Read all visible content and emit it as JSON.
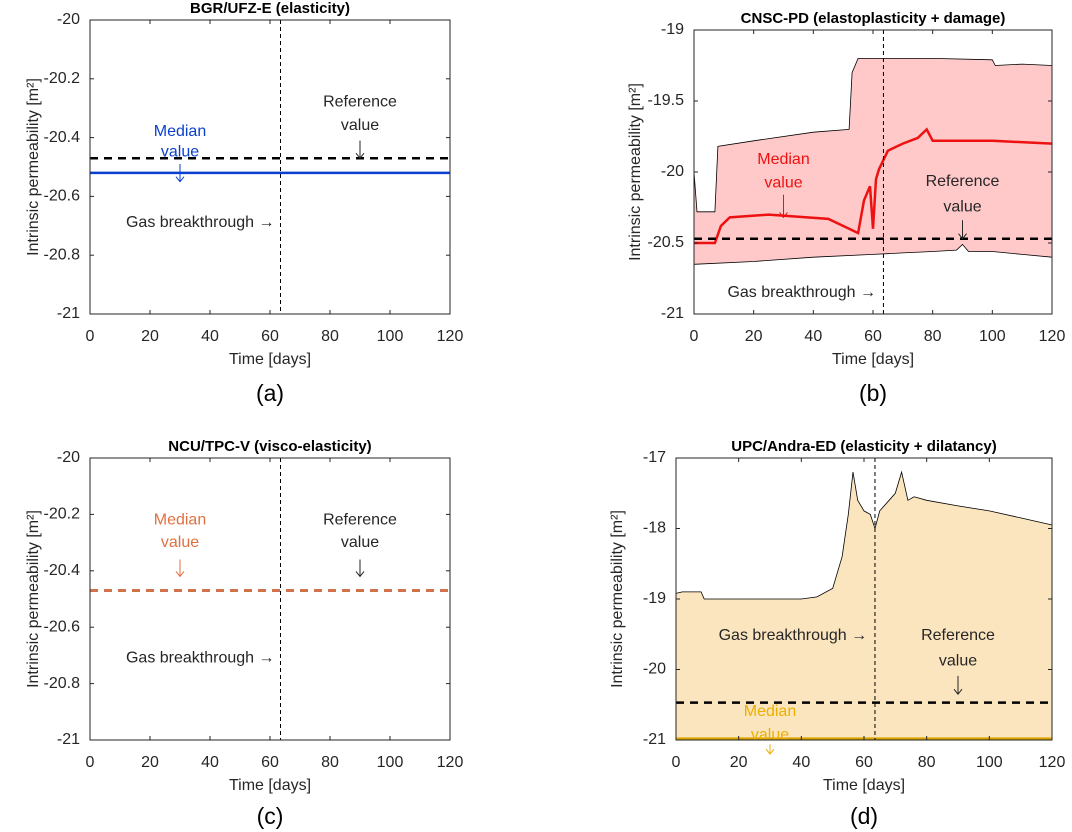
{
  "chart_data": [
    {
      "type": "line",
      "title": "BGR/UFZ-E (elasticity)",
      "panel_label": "(a)",
      "xlabel": "Time [days]",
      "ylabel": "Intrinsic permeability [m²]",
      "xlim": [
        0,
        120
      ],
      "ylim": [
        -21,
        -20
      ],
      "xticks": [
        0,
        20,
        40,
        60,
        80,
        100,
        120
      ],
      "yticks": [
        -21,
        -20.8,
        -20.6,
        -20.4,
        -20.2,
        -20
      ],
      "breakthrough_x": 63.5,
      "series": [
        {
          "x": [
            0,
            120
          ],
          "values": [
            -20.52,
            -20.52
          ],
          "color": "#0a3fd0",
          "dashed": false
        },
        {
          "x": [
            0,
            120
          ],
          "values": [
            -20.47,
            -20.47
          ],
          "color": "#000000",
          "dashed": true
        }
      ],
      "annotations": [
        {
          "text": [
            "Median",
            "value"
          ],
          "color": "#0a3fd0"
        },
        {
          "text": [
            "Reference",
            "value"
          ],
          "color": "#262626"
        },
        {
          "text": [
            "Gas breakthrough →"
          ],
          "color": "#262626"
        }
      ]
    },
    {
      "type": "line",
      "title": "CNSC-PD (elastoplasticity + damage)",
      "panel_label": "(b)",
      "xlabel": "Time [days]",
      "ylabel": "Intrinsic permeability [m²]",
      "xlim": [
        0,
        120
      ],
      "ylim": [
        -21,
        -19
      ],
      "xticks": [
        0,
        20,
        40,
        60,
        80,
        100,
        120
      ],
      "yticks": [
        -21,
        -20.5,
        -20,
        -19.5,
        -19
      ],
      "breakthrough_x": 63.5,
      "band": {
        "color": "#ffc9c9",
        "upper": {
          "x": [
            0,
            1,
            2,
            7,
            8,
            20,
            40,
            52,
            53,
            55,
            60,
            80,
            100,
            101,
            110,
            120
          ],
          "values": [
            -20.0,
            -20.28,
            -20.28,
            -20.28,
            -19.82,
            -19.78,
            -19.72,
            -19.7,
            -19.3,
            -19.2,
            -19.2,
            -19.2,
            -19.21,
            -19.25,
            -19.24,
            -19.25
          ]
        },
        "lower": {
          "x": [
            0,
            20,
            40,
            60,
            70,
            80,
            88,
            90,
            92,
            100,
            110,
            120
          ],
          "values": [
            -20.65,
            -20.63,
            -20.6,
            -20.58,
            -20.57,
            -20.56,
            -20.55,
            -20.51,
            -20.56,
            -20.56,
            -20.58,
            -20.6
          ]
        }
      },
      "series": [
        {
          "x": [
            0,
            7,
            9,
            12,
            25,
            45,
            52,
            55,
            57,
            59,
            60,
            61,
            62,
            65,
            70,
            75,
            78,
            80,
            90,
            100,
            120
          ],
          "values": [
            -20.5,
            -20.5,
            -20.38,
            -20.32,
            -20.3,
            -20.33,
            -20.4,
            -20.43,
            -20.2,
            -20.1,
            -20.4,
            -20.05,
            -19.98,
            -19.85,
            -19.8,
            -19.76,
            -19.7,
            -19.78,
            -19.78,
            -19.78,
            -19.8
          ],
          "color": "#ee1111",
          "dashed": false
        },
        {
          "x": [
            0,
            120
          ],
          "values": [
            -20.47,
            -20.47
          ],
          "color": "#000000",
          "dashed": true
        }
      ],
      "annotations": [
        {
          "text": [
            "Median",
            "value"
          ],
          "color": "#ee1111"
        },
        {
          "text": [
            "Reference",
            "value"
          ],
          "color": "#262626"
        },
        {
          "text": [
            "Gas breakthrough →"
          ],
          "color": "#262626"
        }
      ]
    },
    {
      "type": "line",
      "title": "NCU/TPC-V (visco-elasticity)",
      "panel_label": "(c)",
      "xlabel": "Time [days]",
      "ylabel": "Intrinsic permeability [m²]",
      "xlim": [
        0,
        120
      ],
      "ylim": [
        -21,
        -20
      ],
      "xticks": [
        0,
        20,
        40,
        60,
        80,
        100,
        120
      ],
      "yticks": [
        -21,
        -20.8,
        -20.6,
        -20.4,
        -20.2,
        -20
      ],
      "breakthrough_x": 63.5,
      "series": [
        {
          "x": [
            0,
            120
          ],
          "values": [
            -20.47,
            -20.47
          ],
          "color": "#000000",
          "dashed": true
        },
        {
          "x": [
            0,
            120
          ],
          "values": [
            -20.47,
            -20.47
          ],
          "color": "#e07040",
          "dashed": true
        }
      ],
      "annotations": [
        {
          "text": [
            "Median",
            "value"
          ],
          "color": "#e07040"
        },
        {
          "text": [
            "Reference",
            "value"
          ],
          "color": "#262626"
        },
        {
          "text": [
            "Gas breakthrough →"
          ],
          "color": "#262626"
        }
      ]
    },
    {
      "type": "line",
      "title": "UPC/Andra-ED (elasticity + dilatancy)",
      "panel_label": "(d)",
      "xlabel": "Time [days]",
      "ylabel": "Intrinsic permeability [m²]",
      "xlim": [
        0,
        120
      ],
      "ylim": [
        -21,
        -17
      ],
      "xticks": [
        0,
        20,
        40,
        60,
        80,
        100,
        120
      ],
      "yticks": [
        -21,
        -20,
        -19,
        -18,
        -17
      ],
      "breakthrough_x": 63.5,
      "band": {
        "color": "#fbe5bf",
        "upper": {
          "x": [
            0,
            2,
            8,
            9,
            40,
            45,
            50,
            53,
            55,
            56.5,
            58,
            60,
            62,
            63.5,
            65,
            68,
            70,
            72,
            74,
            76,
            80,
            90,
            100,
            110,
            120
          ],
          "values": [
            -18.92,
            -18.9,
            -18.9,
            -19.0,
            -19.0,
            -18.97,
            -18.85,
            -18.4,
            -17.8,
            -17.2,
            -17.6,
            -17.75,
            -17.8,
            -18.0,
            -17.75,
            -17.6,
            -17.5,
            -17.2,
            -17.6,
            -17.55,
            -17.6,
            -17.68,
            -17.75,
            -17.85,
            -17.95
          ]
        },
        "lower": {
          "x": [
            0,
            120
          ],
          "values": [
            -21,
            -21
          ]
        }
      },
      "series": [
        {
          "x": [
            0,
            120
          ],
          "values": [
            -20.98,
            -20.98
          ],
          "color": "#d9a400",
          "dashed": false
        },
        {
          "x": [
            0,
            120
          ],
          "values": [
            -20.47,
            -20.47
          ],
          "color": "#000000",
          "dashed": true
        }
      ],
      "annotations": [
        {
          "text": [
            "Gas breakthrough →"
          ],
          "color": "#262626"
        },
        {
          "text": [
            "Reference",
            "value"
          ],
          "color": "#262626"
        },
        {
          "text": [
            "Median",
            "value"
          ],
          "color": "#ebb000"
        }
      ]
    }
  ]
}
